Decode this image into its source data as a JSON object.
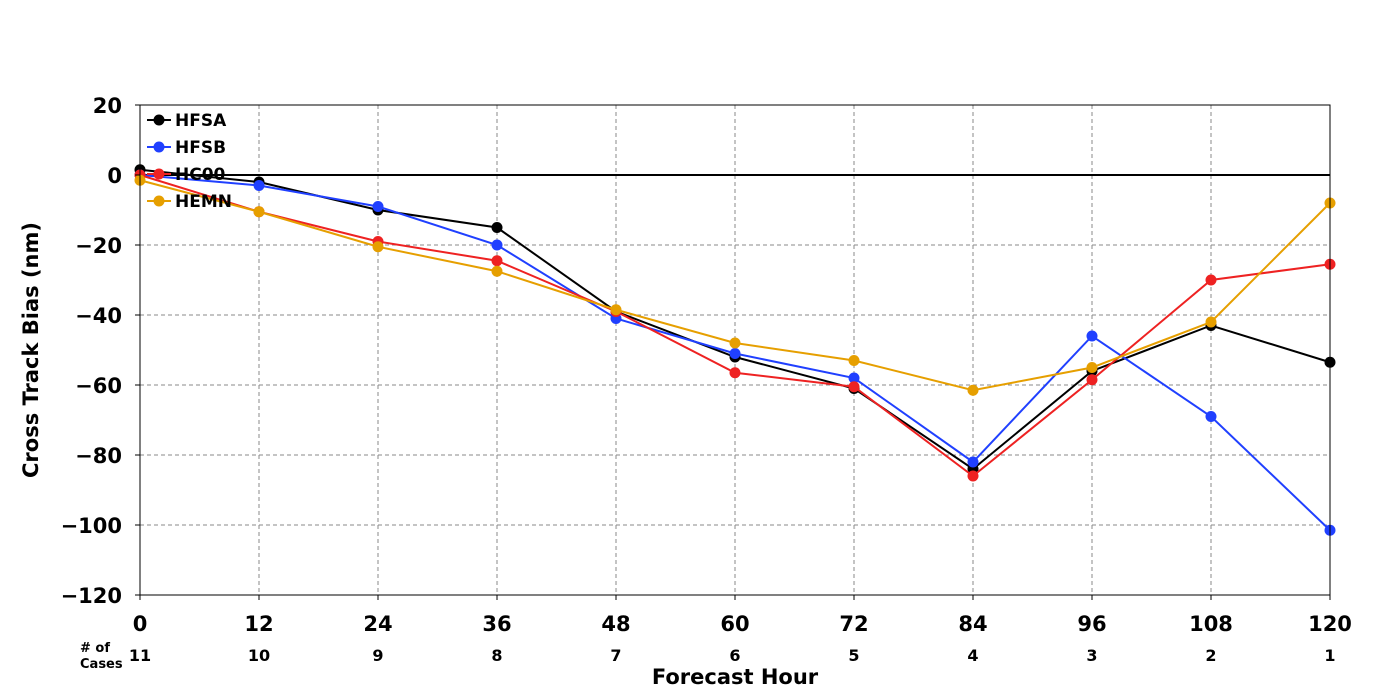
{
  "chart_data": {
    "type": "line",
    "title": "",
    "xlabel": "Forecast Hour",
    "ylabel": "Cross Track Bias (nm)",
    "x": [
      0,
      12,
      24,
      36,
      48,
      60,
      72,
      84,
      96,
      108,
      120
    ],
    "x_tick_labels": [
      "0",
      "12",
      "24",
      "36",
      "48",
      "60",
      "72",
      "84",
      "96",
      "108",
      "120"
    ],
    "ylim": [
      -120,
      20
    ],
    "y_ticks": [
      20,
      0,
      -20,
      -40,
      -60,
      -80,
      -100,
      -120
    ],
    "y_tick_labels": [
      "20",
      "0",
      "−20",
      "−40",
      "−60",
      "−80",
      "−100",
      "−120"
    ],
    "grid": true,
    "zero_line": true,
    "legend_position": "top-left",
    "cases_label": [
      "# of",
      "Cases"
    ],
    "num_cases": [
      "11",
      "10",
      "9",
      "8",
      "7",
      "6",
      "5",
      "4",
      "3",
      "2",
      "1"
    ],
    "series": [
      {
        "name": "HFSA",
        "color": "#000000",
        "values": [
          1.5,
          -2,
          -10,
          -15,
          -39,
          -52,
          -61,
          -84,
          -56,
          -43,
          -53.5
        ]
      },
      {
        "name": "HFSB",
        "color": "#2040ff",
        "values": [
          0,
          -3,
          -9,
          -20,
          -41,
          -51,
          -58,
          -82,
          -46,
          -69,
          -101.5
        ]
      },
      {
        "name": "HC00",
        "color": "#ee2222",
        "values": [
          0,
          -10.5,
          -19,
          -24.5,
          -39,
          -56.5,
          -60.5,
          -86,
          -58.5,
          -30,
          -25.5
        ]
      },
      {
        "name": "HEMN",
        "color": "#e69f00",
        "values": [
          -1.5,
          -10.5,
          -20.5,
          -27.5,
          -38.5,
          -48,
          -53,
          -61.5,
          -55,
          -42,
          -8
        ]
      }
    ]
  }
}
